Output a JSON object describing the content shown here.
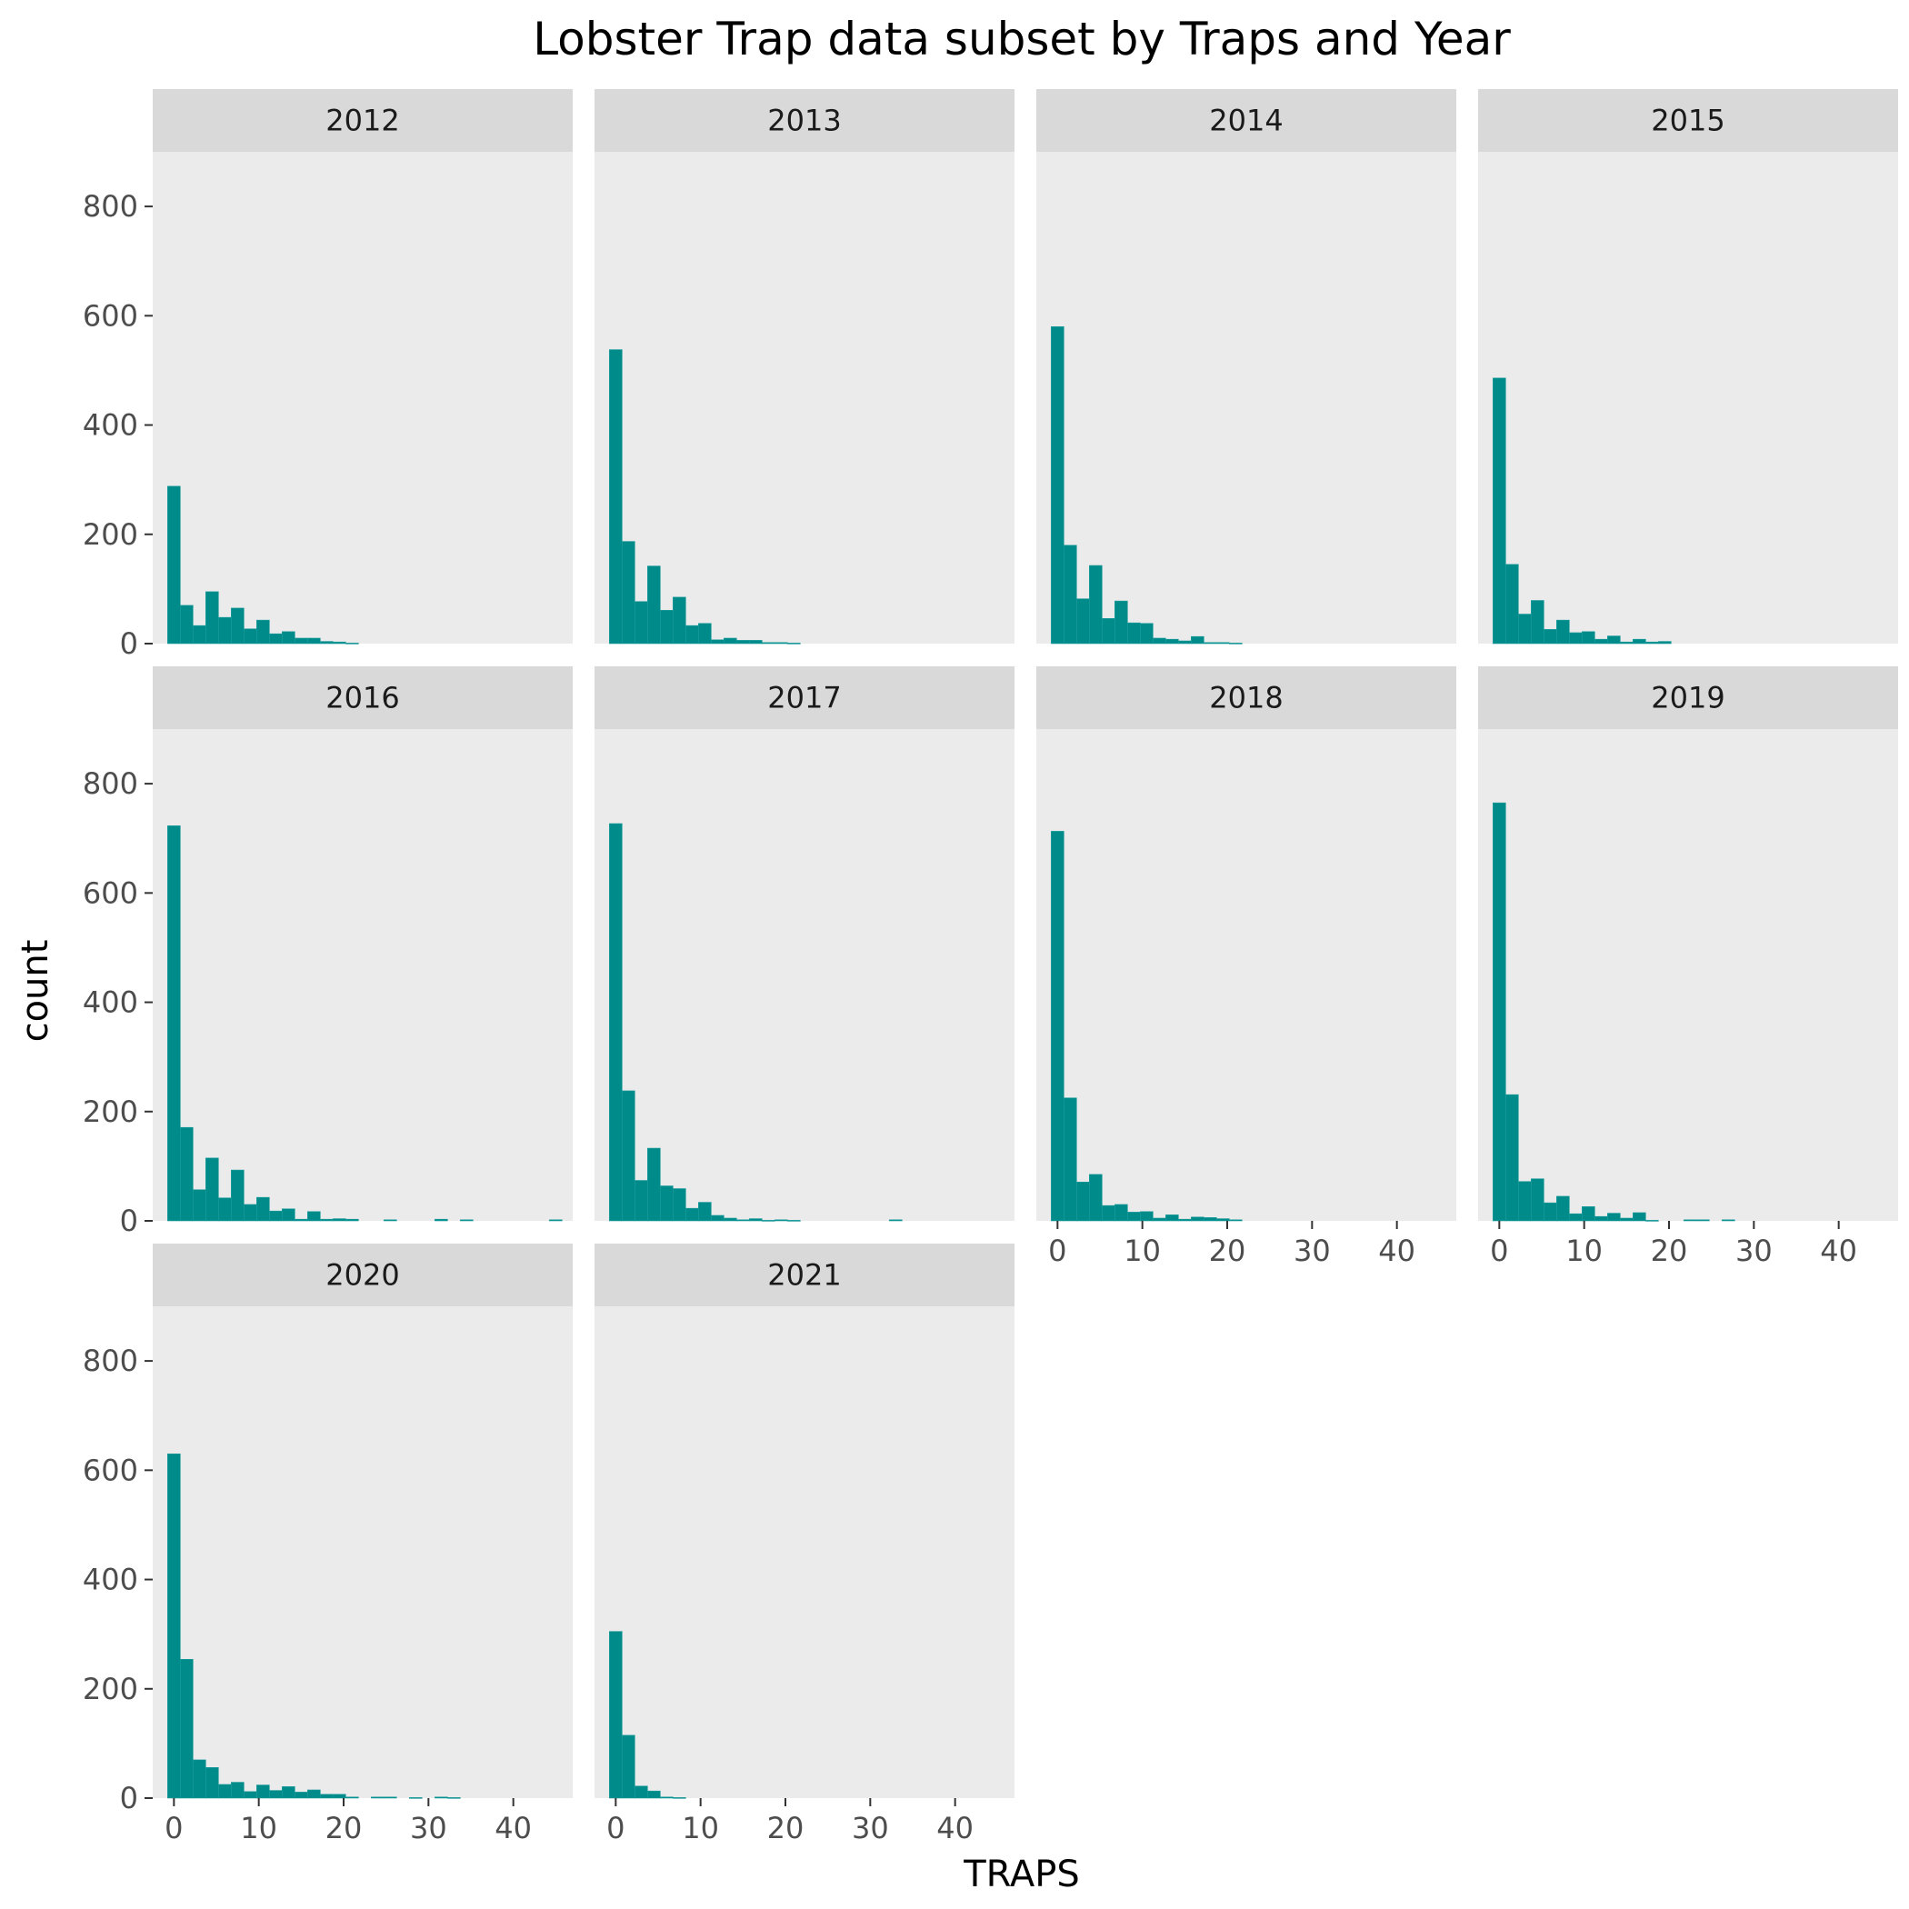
{
  "chart_data": {
    "type": "bar",
    "subtype": "faceted-histogram",
    "title": "Lobster Trap data subset by Traps and Year",
    "xlabel": "TRAPS",
    "ylabel": "count",
    "xlim": [
      -2.5,
      47
    ],
    "ylim": [
      0,
      900
    ],
    "x_ticks": [
      0,
      10,
      20,
      30,
      40
    ],
    "y_ticks": [
      0,
      200,
      400,
      600,
      800
    ],
    "bin_width": 1.5,
    "bin_start": -0.75,
    "grid": false,
    "legend": "none",
    "colors": {
      "bar": "#008b8b",
      "panel_bg": "#ebebeb",
      "strip_bg": "#d9d9d9"
    },
    "facets": [
      {
        "label": "2012",
        "counts": [
          288,
          70,
          33,
          95,
          48,
          65,
          27,
          43,
          18,
          22,
          10,
          10,
          4,
          3,
          1
        ]
      },
      {
        "label": "2013",
        "counts": [
          538,
          187,
          77,
          142,
          61,
          85,
          33,
          37,
          7,
          10,
          6,
          6,
          2,
          2,
          1
        ]
      },
      {
        "label": "2014",
        "counts": [
          580,
          180,
          82,
          143,
          46,
          78,
          38,
          37,
          10,
          8,
          5,
          13,
          2,
          2,
          1
        ]
      },
      {
        "label": "2015",
        "counts": [
          486,
          145,
          54,
          79,
          26,
          43,
          20,
          22,
          8,
          14,
          3,
          8,
          3,
          4
        ]
      },
      {
        "label": "2016",
        "counts": [
          723,
          171,
          57,
          115,
          42,
          93,
          30,
          43,
          18,
          22,
          3,
          17,
          3,
          4,
          3,
          0,
          0,
          2,
          0,
          0,
          0,
          3,
          0,
          2,
          0,
          0,
          0,
          0,
          0,
          0,
          2
        ]
      },
      {
        "label": "2017",
        "counts": [
          727,
          238,
          74,
          133,
          64,
          59,
          23,
          34,
          10,
          5,
          2,
          4,
          1,
          2,
          1,
          0,
          0,
          0,
          0,
          0,
          0,
          0,
          2
        ]
      },
      {
        "label": "2018",
        "counts": [
          713,
          225,
          71,
          85,
          28,
          30,
          16,
          17,
          5,
          11,
          3,
          7,
          6,
          4,
          2
        ]
      },
      {
        "label": "2019",
        "counts": [
          765,
          231,
          72,
          77,
          33,
          45,
          13,
          26,
          8,
          14,
          5,
          15,
          1,
          0,
          0,
          2,
          2,
          0,
          2
        ]
      },
      {
        "label": "2020",
        "counts": [
          630,
          254,
          70,
          56,
          25,
          29,
          12,
          24,
          14,
          21,
          11,
          15,
          7,
          7,
          2,
          0,
          2,
          2,
          0,
          1,
          0,
          2,
          1
        ]
      },
      {
        "label": "2021",
        "counts": [
          305,
          115,
          22,
          13,
          2,
          1
        ]
      }
    ]
  }
}
